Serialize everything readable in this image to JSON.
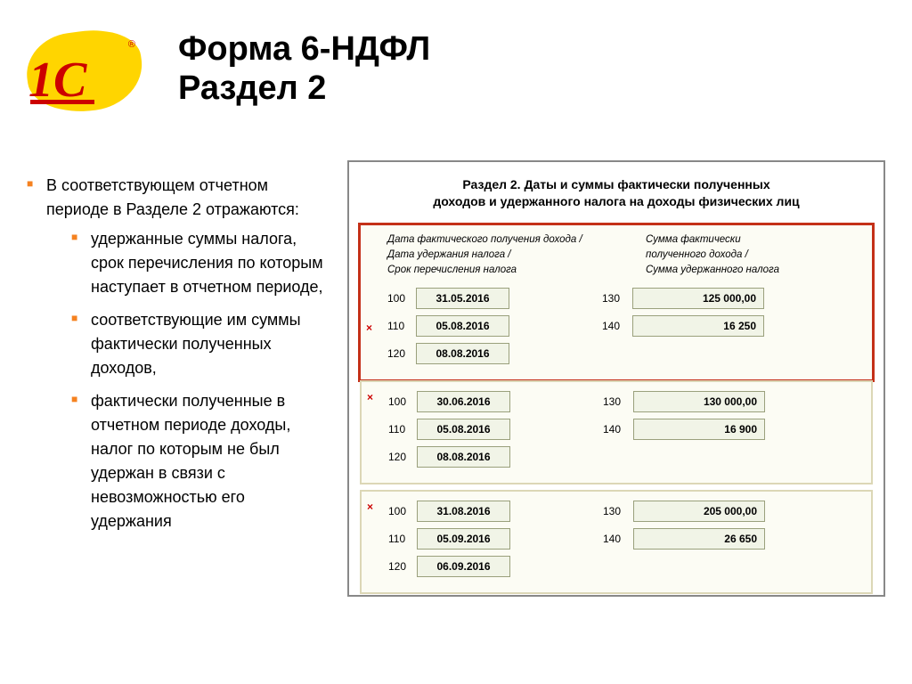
{
  "logo": {
    "text": "1С",
    "registered": "®"
  },
  "title_line1": "Форма 6-НДФЛ",
  "title_line2": "Раздел 2",
  "left": {
    "intro": "В соответствующем отчетном периоде в Разделе 2 отражаются:",
    "items": [
      "удержанные суммы налога, срок перечисления по которым наступает в отчетном периоде,",
      "соответствующие им суммы фактически полученных доходов,",
      "фактически полученные в отчетном периоде доходы, налог по которым не был удержан в связи с невозможностью его удержания"
    ]
  },
  "panel": {
    "title_line1": "Раздел 2.  Даты и суммы фактически полученных",
    "title_line2": "доходов и удержанного налога на доходы физических лиц",
    "header_left_l1": "Дата фактического получения дохода /",
    "header_left_l2": "Дата удержания налога /",
    "header_left_l3": "Срок перечисления налога",
    "header_right_l1": "Сумма фактически",
    "header_right_l2": "полученного дохода /",
    "header_right_l3": "Сумма удержанного налога",
    "close_icon": "×",
    "blocks": [
      {
        "highlight": true,
        "rows": [
          {
            "code_l": "100",
            "date": "31.05.2016",
            "code_r": "130",
            "amount": "125 000,00"
          },
          {
            "code_l": "110",
            "date": "05.08.2016",
            "code_r": "140",
            "amount": "16 250"
          },
          {
            "code_l": "120",
            "date": "08.08.2016",
            "code_r": "",
            "amount": ""
          }
        ]
      },
      {
        "highlight": false,
        "rows": [
          {
            "code_l": "100",
            "date": "30.06.2016",
            "code_r": "130",
            "amount": "130 000,00"
          },
          {
            "code_l": "110",
            "date": "05.08.2016",
            "code_r": "140",
            "amount": "16 900"
          },
          {
            "code_l": "120",
            "date": "08.08.2016",
            "code_r": "",
            "amount": ""
          }
        ]
      },
      {
        "highlight": false,
        "rows": [
          {
            "code_l": "100",
            "date": "31.08.2016",
            "code_r": "130",
            "amount": "205 000,00"
          },
          {
            "code_l": "110",
            "date": "05.09.2016",
            "code_r": "140",
            "amount": "26 650"
          },
          {
            "code_l": "120",
            "date": "06.09.2016",
            "code_r": "",
            "amount": ""
          }
        ]
      }
    ]
  }
}
